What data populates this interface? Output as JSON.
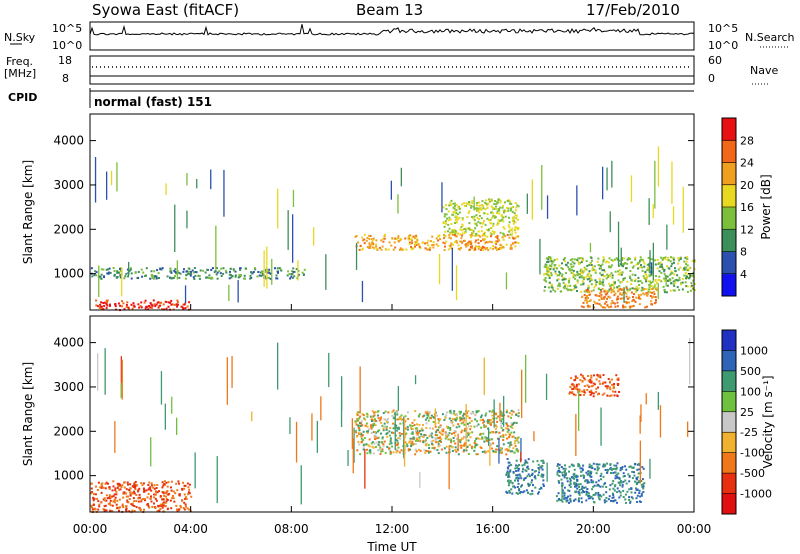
{
  "header": {
    "title": "Syowa East (fitACF)",
    "beam": "Beam 13",
    "date": "17/Feb/2010"
  },
  "summary_panels": {
    "left_labels": {
      "nsky": "N.Sky",
      "freq": "Freq.",
      "freq_unit": "[MHz]",
      "cpid": "CPID"
    },
    "right_labels": {
      "nsearch": "N.Search",
      "nave": "Nave"
    },
    "nsky_ticks": {
      "top": "10^5",
      "bottom": "10^0"
    },
    "freq_ticks": {
      "top": "18",
      "bottom": "8"
    },
    "nave_ticks": {
      "top": "60",
      "bottom": "0"
    },
    "cpid_text": "normal (fast) 151"
  },
  "axes": {
    "xlabel": "Time UT",
    "ylabel": "Slant Range [km]",
    "x_ticks": [
      "00:00",
      "04:00",
      "08:00",
      "12:00",
      "16:00",
      "20:00",
      "00:00"
    ],
    "y_ticks": [
      "1000",
      "2000",
      "3000",
      "4000"
    ],
    "ylim": [
      180,
      4600
    ],
    "xlim_hours": [
      0,
      24
    ]
  },
  "colorbars": {
    "power": {
      "label": "Power [dB]",
      "ticks": [
        "4",
        "8",
        "12",
        "16",
        "20",
        "24",
        "28"
      ],
      "colors": [
        "#1010f0",
        "#2b50b0",
        "#3d8f5a",
        "#7bbf3a",
        "#e8d820",
        "#f0a020",
        "#f06818",
        "#e81010"
      ]
    },
    "velocity": {
      "label": "Velocity [m s⁻¹]",
      "ticks": [
        "1000",
        "500",
        "100",
        "25",
        "-25",
        "-100",
        "-500",
        "-1000"
      ],
      "colors": [
        "#2030c0",
        "#2f65b8",
        "#3e9a70",
        "#70c040",
        "#c8c8c8",
        "#f0b030",
        "#f07818",
        "#e83010",
        "#e01010"
      ]
    }
  },
  "chart_data": [
    {
      "type": "heatmap",
      "name": "Power",
      "units": "dB",
      "note_regions_hours_km": [
        {
          "t": [
            0.2,
            4.0
          ],
          "r": [
            200,
            420
          ],
          "level": 28
        },
        {
          "t": [
            0.0,
            8.5
          ],
          "r": [
            900,
            1150
          ],
          "level": 8
        },
        {
          "t": [
            10.5,
            17.0
          ],
          "r": [
            1550,
            1900
          ],
          "level": 20
        },
        {
          "t": [
            14.0,
            17.0
          ],
          "r": [
            1900,
            2700
          ],
          "level": 14
        },
        {
          "t": [
            18.0,
            24.0
          ],
          "r": [
            600,
            1400
          ],
          "level": 12
        },
        {
          "t": [
            19.5,
            22.5
          ],
          "r": [
            250,
            700
          ],
          "level": 22
        }
      ]
    },
    {
      "type": "heatmap",
      "name": "Velocity",
      "units": "m s-1",
      "note_regions_hours_km": [
        {
          "t": [
            0.0,
            4.0
          ],
          "r": [
            200,
            900
          ],
          "level": -500
        },
        {
          "t": [
            10.5,
            17.0
          ],
          "r": [
            1500,
            2500
          ],
          "level": 0
        },
        {
          "t": [
            16.5,
            18.0
          ],
          "r": [
            600,
            1400
          ],
          "level": 500
        },
        {
          "t": [
            18.5,
            22.0
          ],
          "r": [
            400,
            1300
          ],
          "level": 500
        },
        {
          "t": [
            19.0,
            21.0
          ],
          "r": [
            2800,
            3300
          ],
          "level": -500
        }
      ]
    }
  ]
}
